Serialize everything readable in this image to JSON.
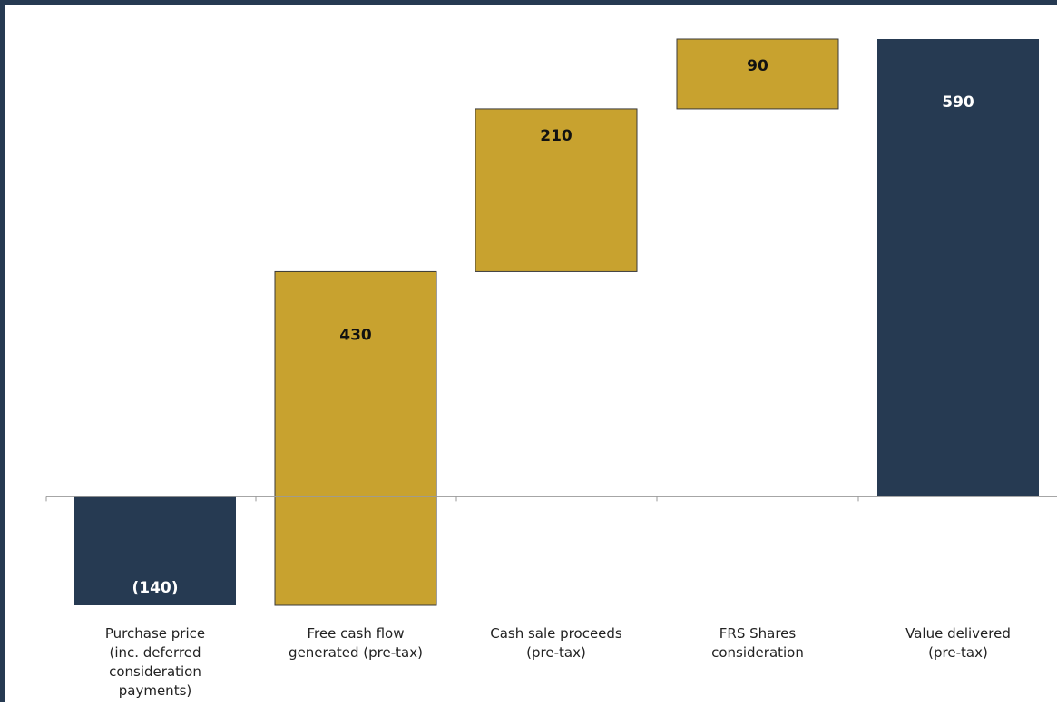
{
  "chart_data": {
    "type": "bar",
    "subtype": "waterfall",
    "title": "",
    "xlabel": "",
    "ylabel": "",
    "ylim": [
      -140,
      590
    ],
    "grid": false,
    "legend": "none",
    "colors": {
      "total": "#263a52",
      "increment": "#c8a22f",
      "total_label": "#ffffff",
      "increment_label": "#111111",
      "axis": "#9a9a9a"
    },
    "categories": [
      "Purchase price (inc. deferred consideration payments)",
      "Free cash flow generated (pre-tax)",
      "Cash sale proceeds (pre-tax)",
      "FRS Shares consideration",
      "Value delivered (pre-tax)"
    ],
    "category_lines": [
      [
        "Purchase price",
        "(inc. deferred",
        "consideration",
        "payments)"
      ],
      [
        "Free cash flow",
        "generated (pre-tax)"
      ],
      [
        "Cash sale proceeds",
        "(pre-tax)"
      ],
      [
        "FRS Shares",
        "consideration"
      ],
      [
        "Value delivered",
        "(pre-tax)"
      ]
    ],
    "bars": [
      {
        "kind": "total",
        "value": -140,
        "start": 0,
        "end": -140,
        "label": "(140)"
      },
      {
        "kind": "increment",
        "value": 430,
        "start": -140,
        "end": 290,
        "label": "430"
      },
      {
        "kind": "increment",
        "value": 210,
        "start": 290,
        "end": 500,
        "label": "210"
      },
      {
        "kind": "increment",
        "value": 90,
        "start": 500,
        "end": 590,
        "label": "90"
      },
      {
        "kind": "total",
        "value": 590,
        "start": 0,
        "end": 590,
        "label": "590"
      }
    ]
  }
}
